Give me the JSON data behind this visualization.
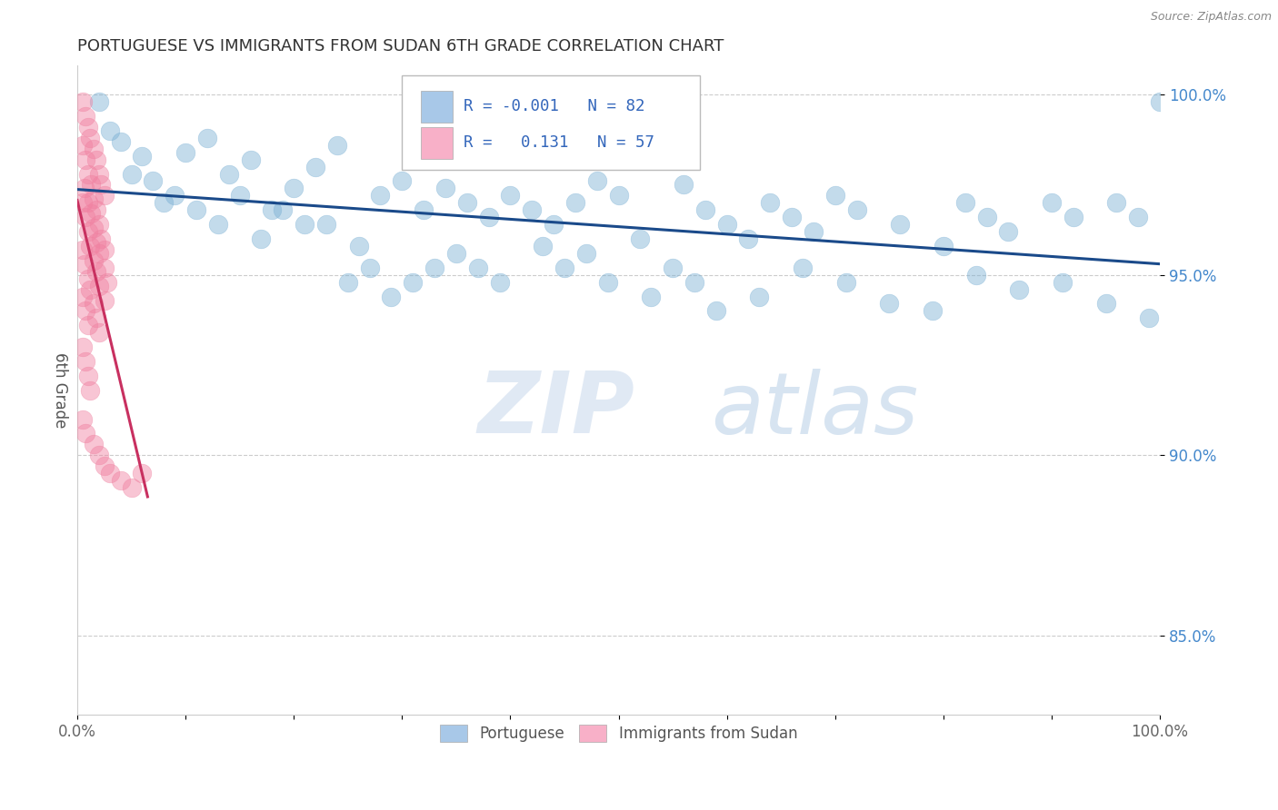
{
  "title": "PORTUGUESE VS IMMIGRANTS FROM SUDAN 6TH GRADE CORRELATION CHART",
  "source": "Source: ZipAtlas.com",
  "ylabel": "6th Grade",
  "watermark": "ZIPatlas",
  "xlim": [
    0.0,
    1.0
  ],
  "ylim": [
    0.828,
    1.008
  ],
  "yticks": [
    0.85,
    0.9,
    0.95,
    1.0
  ],
  "yticklabels": [
    "85.0%",
    "90.0%",
    "95.0%",
    "100.0%"
  ],
  "legend_label_blue": "R = -0.001   N = 82",
  "legend_label_pink": "R =   0.131   N = 57",
  "legend_color_blue": "#a8c8e8",
  "legend_color_pink": "#f8b0c8",
  "blue_color": "#7ab0d4",
  "pink_color": "#f080a0",
  "trendline_blue_color": "#1a4a8a",
  "trendline_pink_color": "#c83060",
  "grid_color": "#cccccc",
  "title_color": "#333333",
  "tick_color_y": "#4488cc",
  "tick_color_x": "#666666",
  "background_color": "#ffffff",
  "blue_x": [
    0.02,
    0.04,
    0.06,
    0.1,
    0.12,
    0.14,
    0.16,
    0.2,
    0.22,
    0.24,
    0.28,
    0.3,
    0.32,
    0.34,
    0.36,
    0.38,
    0.4,
    0.42,
    0.44,
    0.46,
    0.48,
    0.5,
    0.52,
    0.56,
    0.58,
    0.6,
    0.62,
    0.64,
    0.66,
    0.68,
    0.7,
    0.72,
    0.76,
    0.8,
    0.82,
    0.84,
    0.86,
    0.9,
    0.92,
    0.96,
    0.98,
    1.0,
    0.03,
    0.07,
    0.09,
    0.11,
    0.13,
    0.15,
    0.17,
    0.19,
    0.21,
    0.25,
    0.27,
    0.29,
    0.31,
    0.33,
    0.35,
    0.37,
    0.39,
    0.43,
    0.45,
    0.47,
    0.49,
    0.53,
    0.55,
    0.57,
    0.59,
    0.63,
    0.67,
    0.71,
    0.75,
    0.79,
    0.83,
    0.87,
    0.91,
    0.95,
    0.99,
    0.05,
    0.08,
    0.18,
    0.23,
    0.26
  ],
  "blue_y": [
    0.998,
    0.987,
    0.983,
    0.984,
    0.988,
    0.978,
    0.982,
    0.974,
    0.98,
    0.986,
    0.972,
    0.976,
    0.968,
    0.974,
    0.97,
    0.966,
    0.972,
    0.968,
    0.964,
    0.97,
    0.976,
    0.972,
    0.96,
    0.975,
    0.968,
    0.964,
    0.96,
    0.97,
    0.966,
    0.962,
    0.972,
    0.968,
    0.964,
    0.958,
    0.97,
    0.966,
    0.962,
    0.97,
    0.966,
    0.97,
    0.966,
    0.998,
    0.99,
    0.976,
    0.972,
    0.968,
    0.964,
    0.972,
    0.96,
    0.968,
    0.964,
    0.948,
    0.952,
    0.944,
    0.948,
    0.952,
    0.956,
    0.952,
    0.948,
    0.958,
    0.952,
    0.956,
    0.948,
    0.944,
    0.952,
    0.948,
    0.94,
    0.944,
    0.952,
    0.948,
    0.942,
    0.94,
    0.95,
    0.946,
    0.948,
    0.942,
    0.938,
    0.978,
    0.97,
    0.968,
    0.964,
    0.958
  ],
  "pink_x": [
    0.005,
    0.008,
    0.01,
    0.012,
    0.015,
    0.018,
    0.02,
    0.022,
    0.025,
    0.005,
    0.008,
    0.01,
    0.013,
    0.015,
    0.018,
    0.02,
    0.022,
    0.025,
    0.007,
    0.01,
    0.013,
    0.015,
    0.018,
    0.02,
    0.025,
    0.028,
    0.005,
    0.008,
    0.01,
    0.012,
    0.015,
    0.018,
    0.02,
    0.025,
    0.005,
    0.007,
    0.01,
    0.012,
    0.015,
    0.018,
    0.02,
    0.005,
    0.008,
    0.01,
    0.005,
    0.008,
    0.01,
    0.012,
    0.005,
    0.008,
    0.015,
    0.02,
    0.025,
    0.03,
    0.04,
    0.05,
    0.06
  ],
  "pink_y": [
    0.998,
    0.994,
    0.991,
    0.988,
    0.985,
    0.982,
    0.978,
    0.975,
    0.972,
    0.986,
    0.982,
    0.978,
    0.975,
    0.971,
    0.968,
    0.964,
    0.96,
    0.957,
    0.974,
    0.97,
    0.967,
    0.963,
    0.959,
    0.956,
    0.952,
    0.948,
    0.97,
    0.966,
    0.962,
    0.958,
    0.954,
    0.951,
    0.947,
    0.943,
    0.957,
    0.953,
    0.949,
    0.946,
    0.942,
    0.938,
    0.934,
    0.944,
    0.94,
    0.936,
    0.93,
    0.926,
    0.922,
    0.918,
    0.91,
    0.906,
    0.903,
    0.9,
    0.897,
    0.895,
    0.893,
    0.891,
    0.895
  ]
}
